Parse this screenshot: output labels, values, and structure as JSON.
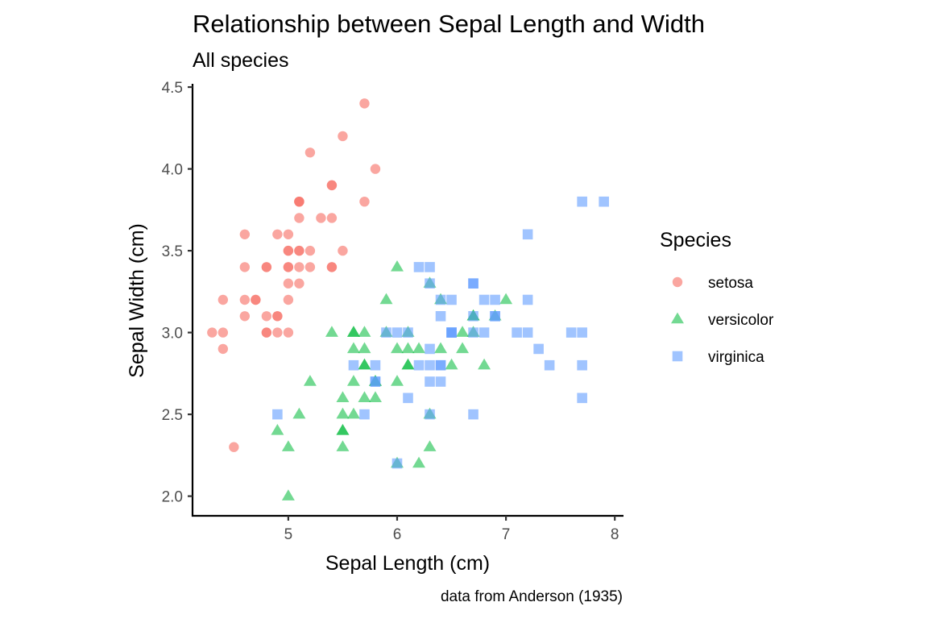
{
  "chart_data": {
    "type": "scatter",
    "title": "Relationship between Sepal Length and Width",
    "subtitle": "All species",
    "xlabel": "Sepal Length (cm)",
    "ylabel": "Sepal Width (cm)",
    "caption": "data from Anderson (1935)",
    "xlim": [
      4.12,
      8.08
    ],
    "ylim": [
      1.88,
      4.52
    ],
    "x_ticks": [
      5,
      6,
      7,
      8
    ],
    "y_ticks": [
      2.0,
      2.5,
      3.0,
      3.5,
      4.0,
      4.5
    ],
    "x_tick_labels": [
      "5",
      "6",
      "7",
      "8"
    ],
    "y_tick_labels": [
      "2.0",
      "2.5",
      "3.0",
      "3.5",
      "4.0",
      "4.5"
    ],
    "grid": false,
    "legend": {
      "title": "Species",
      "position": "right"
    },
    "series": [
      {
        "name": "setosa",
        "color": "#F8766D",
        "shape": "circle",
        "points": [
          [
            5.1,
            3.5
          ],
          [
            4.9,
            3.0
          ],
          [
            4.7,
            3.2
          ],
          [
            4.6,
            3.1
          ],
          [
            5.0,
            3.6
          ],
          [
            5.4,
            3.9
          ],
          [
            4.6,
            3.4
          ],
          [
            5.0,
            3.4
          ],
          [
            4.4,
            2.9
          ],
          [
            4.9,
            3.1
          ],
          [
            5.4,
            3.7
          ],
          [
            4.8,
            3.4
          ],
          [
            4.8,
            3.0
          ],
          [
            4.3,
            3.0
          ],
          [
            5.8,
            4.0
          ],
          [
            5.7,
            4.4
          ],
          [
            5.4,
            3.9
          ],
          [
            5.1,
            3.5
          ],
          [
            5.7,
            3.8
          ],
          [
            5.1,
            3.8
          ],
          [
            5.4,
            3.4
          ],
          [
            5.1,
            3.7
          ],
          [
            4.6,
            3.6
          ],
          [
            5.1,
            3.3
          ],
          [
            4.8,
            3.4
          ],
          [
            5.0,
            3.0
          ],
          [
            5.0,
            3.4
          ],
          [
            5.2,
            3.5
          ],
          [
            5.2,
            3.4
          ],
          [
            4.7,
            3.2
          ],
          [
            4.8,
            3.1
          ],
          [
            5.4,
            3.4
          ],
          [
            5.2,
            4.1
          ],
          [
            5.5,
            4.2
          ],
          [
            4.9,
            3.1
          ],
          [
            5.0,
            3.2
          ],
          [
            5.5,
            3.5
          ],
          [
            4.9,
            3.6
          ],
          [
            4.4,
            3.0
          ],
          [
            5.1,
            3.4
          ],
          [
            5.0,
            3.5
          ],
          [
            4.5,
            2.3
          ],
          [
            4.4,
            3.2
          ],
          [
            5.0,
            3.5
          ],
          [
            5.1,
            3.8
          ],
          [
            4.8,
            3.0
          ],
          [
            5.1,
            3.8
          ],
          [
            4.6,
            3.2
          ],
          [
            5.3,
            3.7
          ],
          [
            5.0,
            3.3
          ]
        ]
      },
      {
        "name": "versicolor",
        "color": "#00BA38",
        "shape": "triangle",
        "points": [
          [
            7.0,
            3.2
          ],
          [
            6.4,
            3.2
          ],
          [
            6.9,
            3.1
          ],
          [
            5.5,
            2.3
          ],
          [
            6.5,
            2.8
          ],
          [
            5.7,
            2.8
          ],
          [
            6.3,
            3.3
          ],
          [
            4.9,
            2.4
          ],
          [
            6.6,
            2.9
          ],
          [
            5.2,
            2.7
          ],
          [
            5.0,
            2.0
          ],
          [
            5.9,
            3.0
          ],
          [
            6.0,
            2.2
          ],
          [
            6.1,
            2.9
          ],
          [
            5.6,
            2.9
          ],
          [
            6.7,
            3.1
          ],
          [
            5.6,
            3.0
          ],
          [
            5.8,
            2.7
          ],
          [
            6.2,
            2.2
          ],
          [
            5.6,
            2.5
          ],
          [
            5.9,
            3.2
          ],
          [
            6.1,
            2.8
          ],
          [
            6.3,
            2.5
          ],
          [
            6.1,
            2.8
          ],
          [
            6.4,
            2.9
          ],
          [
            6.6,
            3.0
          ],
          [
            6.8,
            2.8
          ],
          [
            6.7,
            3.0
          ],
          [
            6.0,
            2.9
          ],
          [
            5.7,
            2.6
          ],
          [
            5.5,
            2.4
          ],
          [
            5.5,
            2.4
          ],
          [
            5.8,
            2.7
          ],
          [
            6.0,
            2.7
          ],
          [
            5.4,
            3.0
          ],
          [
            6.0,
            3.4
          ],
          [
            6.7,
            3.1
          ],
          [
            6.3,
            2.3
          ],
          [
            5.6,
            3.0
          ],
          [
            5.5,
            2.5
          ],
          [
            5.5,
            2.6
          ],
          [
            6.1,
            3.0
          ],
          [
            5.8,
            2.6
          ],
          [
            5.0,
            2.3
          ],
          [
            5.6,
            2.7
          ],
          [
            5.7,
            3.0
          ],
          [
            5.7,
            2.9
          ],
          [
            6.2,
            2.9
          ],
          [
            5.1,
            2.5
          ],
          [
            5.7,
            2.8
          ]
        ]
      },
      {
        "name": "virginica",
        "color": "#619CFF",
        "shape": "square",
        "points": [
          [
            6.3,
            3.3
          ],
          [
            5.8,
            2.7
          ],
          [
            7.1,
            3.0
          ],
          [
            6.3,
            2.9
          ],
          [
            6.5,
            3.0
          ],
          [
            7.6,
            3.0
          ],
          [
            4.9,
            2.5
          ],
          [
            7.3,
            2.9
          ],
          [
            6.7,
            2.5
          ],
          [
            7.2,
            3.6
          ],
          [
            6.5,
            3.2
          ],
          [
            6.4,
            2.7
          ],
          [
            6.8,
            3.0
          ],
          [
            5.7,
            2.5
          ],
          [
            5.8,
            2.8
          ],
          [
            6.4,
            3.2
          ],
          [
            6.5,
            3.0
          ],
          [
            7.7,
            3.8
          ],
          [
            7.7,
            2.6
          ],
          [
            6.0,
            2.2
          ],
          [
            6.9,
            3.2
          ],
          [
            5.6,
            2.8
          ],
          [
            7.7,
            2.8
          ],
          [
            6.3,
            2.7
          ],
          [
            6.7,
            3.3
          ],
          [
            7.2,
            3.2
          ],
          [
            6.2,
            2.8
          ],
          [
            6.1,
            3.0
          ],
          [
            6.4,
            2.8
          ],
          [
            7.2,
            3.0
          ],
          [
            7.4,
            2.8
          ],
          [
            7.9,
            3.8
          ],
          [
            6.4,
            2.8
          ],
          [
            6.3,
            2.8
          ],
          [
            6.1,
            2.6
          ],
          [
            7.7,
            3.0
          ],
          [
            6.3,
            3.4
          ],
          [
            6.4,
            3.1
          ],
          [
            6.0,
            3.0
          ],
          [
            6.9,
            3.1
          ],
          [
            6.7,
            3.1
          ],
          [
            6.9,
            3.1
          ],
          [
            5.8,
            2.7
          ],
          [
            6.8,
            3.2
          ],
          [
            6.7,
            3.3
          ],
          [
            6.7,
            3.0
          ],
          [
            6.3,
            2.5
          ],
          [
            6.5,
            3.0
          ],
          [
            6.2,
            3.4
          ],
          [
            5.9,
            3.0
          ]
        ]
      }
    ]
  }
}
